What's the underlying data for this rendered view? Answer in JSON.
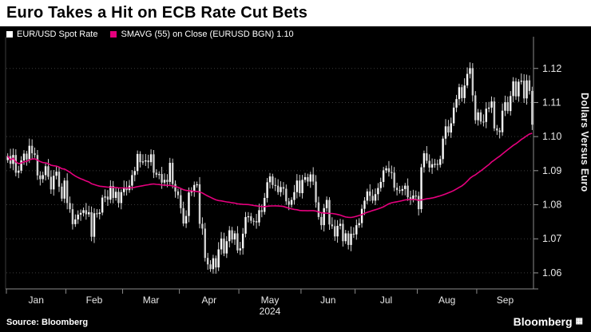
{
  "header": {
    "title": "Euro Takes a Hit on ECB Rate Cut Bets"
  },
  "legend": {
    "items": [
      {
        "label": "EUR/USD Spot Rate",
        "color": "#ffffff"
      },
      {
        "label": "SMAVG (55)  on Close (EURUSD BGN) 1.10",
        "color": "#e6007e"
      }
    ]
  },
  "right_axis_title": "Dollars Versus Euro",
  "footer": {
    "source": "Source: Bloomberg",
    "logo": "Bloomberg"
  },
  "chart_data": {
    "type": "candlestick",
    "title": "Euro Takes a Hit on ECB Rate Cut Bets",
    "ylabel": "Dollars Versus Euro",
    "grid": "horizontal-dotted",
    "legend_position": "top-left",
    "y_ticks": [
      1.06,
      1.07,
      1.08,
      1.09,
      1.1,
      1.11,
      1.12
    ],
    "ylim": [
      1.0553,
      1.1265
    ],
    "x_axis": {
      "year": "2024",
      "months": [
        "Jan",
        "Feb",
        "Mar",
        "Apr",
        "May",
        "Jun",
        "Jul",
        "Aug",
        "Sep"
      ],
      "month_boundaries": [
        0,
        22,
        43,
        64,
        86,
        109,
        129,
        152,
        174,
        195
      ]
    },
    "series": [
      {
        "name": "EUR/USD Spot Rate",
        "type": "ohlc-candles",
        "color": "#f2f2f2",
        "closes": [
          1.0943,
          1.092,
          1.0946,
          1.0894,
          1.09,
          1.093,
          1.095,
          1.0933,
          1.0973,
          1.0951,
          1.0946,
          1.0886,
          1.0875,
          1.0887,
          1.0913,
          1.0882,
          1.0845,
          1.0885,
          1.0897,
          1.0853,
          1.0818,
          1.0871,
          1.0805,
          1.0787,
          1.0743,
          1.0757,
          1.0771,
          1.0776,
          1.0784,
          1.0772,
          1.0778,
          1.0706,
          1.0775,
          1.0773,
          1.0777,
          1.0821,
          1.0824,
          1.0815,
          1.0855,
          1.082,
          1.0838,
          1.0805,
          1.0837,
          1.085,
          1.0843,
          1.0856,
          1.0887,
          1.0899,
          1.0949,
          1.0925,
          1.0927,
          1.093,
          1.0925,
          1.0948,
          1.0894,
          1.0888,
          1.089,
          1.0865,
          1.0873,
          1.0867,
          1.0923,
          1.0861,
          1.0839,
          1.0828,
          1.079,
          1.0745,
          1.0767,
          1.0836,
          1.0839,
          1.0858,
          1.086,
          1.0744,
          1.073,
          1.0644,
          1.0625,
          1.0611,
          1.0643,
          1.0616,
          1.0669,
          1.0701,
          1.0657,
          1.0693,
          1.0725,
          1.0698,
          1.0716,
          1.0666,
          1.0672,
          1.0715,
          1.0764,
          1.0766,
          1.0753,
          1.0752,
          1.0748,
          1.0784,
          1.0779,
          1.082,
          1.0866,
          1.0883,
          1.0858,
          1.0856,
          1.0837,
          1.0852,
          1.0847,
          1.081,
          1.08,
          1.0814,
          1.0837,
          1.0871,
          1.0834,
          1.0873,
          1.0881,
          1.0868,
          1.0889,
          1.0868,
          1.0807,
          1.0764,
          1.074,
          1.079,
          1.0814,
          1.0742,
          1.0737,
          1.0707,
          1.0738,
          1.0744,
          1.0693,
          1.0716,
          1.0682,
          1.0715,
          1.0713,
          1.074,
          1.0746,
          1.0788,
          1.0812,
          1.0839,
          1.0826,
          1.0812,
          1.0831,
          1.0849,
          1.0867,
          1.0901,
          1.0907,
          1.0896,
          1.0894,
          1.085,
          1.0843,
          1.0841,
          1.0846,
          1.0856,
          1.0822,
          1.0815,
          1.0827,
          1.0826,
          1.0787,
          1.091,
          1.0951,
          1.0929,
          1.0909,
          1.0919,
          1.092,
          1.0917,
          1.0934,
          1.0994,
          1.103,
          1.1012,
          1.1039,
          1.1085,
          1.111,
          1.1145,
          1.1113,
          1.115,
          1.1184,
          1.1201,
          1.1121,
          1.1048,
          1.1071,
          1.1044,
          1.1043,
          1.1082,
          1.1085,
          1.1103,
          1.1024,
          1.1018,
          1.1013,
          1.1076,
          1.1101,
          1.1075,
          1.1119,
          1.1162,
          1.1118,
          1.1161,
          1.1164,
          1.1112,
          1.1165,
          1.1134,
          1.1035
        ]
      },
      {
        "name": "SMAVG (55) on Close (EURUSD BGN)",
        "type": "sma-line",
        "color": "#e6007e",
        "window": 55,
        "last_value": 1.1
      }
    ]
  }
}
